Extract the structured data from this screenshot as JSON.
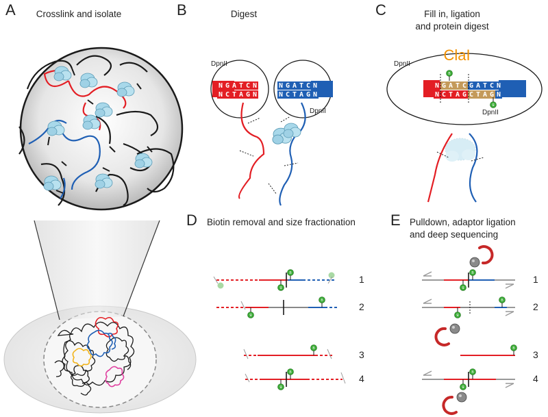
{
  "panels": {
    "a": {
      "letter": "A",
      "title": "Crosslink and isolate"
    },
    "b": {
      "letter": "B",
      "title": "Digest",
      "enzyme_left": "DpnII",
      "enzyme_right": "DpnII",
      "left_top": [
        "N",
        "G",
        "A",
        "T",
        "C",
        "N"
      ],
      "left_bottom": [
        "N",
        "C",
        "T",
        "A",
        "G",
        "N"
      ],
      "right_top": [
        "N",
        "G",
        "A",
        "T",
        "C",
        "N"
      ],
      "right_bottom": [
        "N",
        "C",
        "T",
        "A",
        "G",
        "N"
      ]
    },
    "c": {
      "letter": "C",
      "title_line1": "Fill in, ligation",
      "title_line2": "and protein digest",
      "site": "ClaI",
      "enzyme_left": "DpnII",
      "enzyme_right": "DpnII",
      "seq_top": [
        "N",
        "G",
        "A",
        "T",
        "C",
        "G",
        "A",
        "T",
        "C",
        "N"
      ],
      "seq_bottom": [
        "N",
        "C",
        "T",
        "A",
        "G",
        "C",
        "T",
        "A",
        "G",
        "N"
      ]
    },
    "d": {
      "letter": "D",
      "title": "Biotin removal and size fractionation",
      "labels": [
        "1",
        "2",
        "3",
        "4"
      ]
    },
    "e": {
      "letter": "E",
      "title_line1": "Pulldown, adaptor ligation",
      "title_line2": "and deep sequencing",
      "labels": [
        "1",
        "2",
        "3",
        "4"
      ]
    }
  },
  "colors": {
    "red": "#e31e24",
    "blue": "#1f5fb4",
    "black": "#1a1a1a",
    "grey": "#999999",
    "biotin": "#3aaa35",
    "protein": "#a8d8ea",
    "fill_in": "#c49a5a",
    "cell": "#eeeeee"
  }
}
